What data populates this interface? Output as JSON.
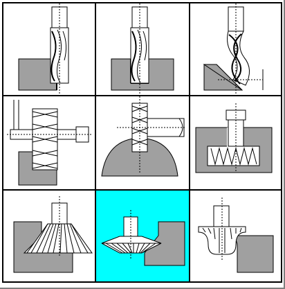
{
  "tool_palette": {
    "selected_index": 7,
    "selected_color": "#00ffff",
    "material_color": "#a0a0a0",
    "tools": [
      {
        "icon": "end-mill-side-cut-icon"
      },
      {
        "icon": "end-mill-corner-cut-icon"
      },
      {
        "icon": "helical-end-mill-chamfer-icon"
      },
      {
        "icon": "slab-mill-face-icon"
      },
      {
        "icon": "side-mill-radius-icon"
      },
      {
        "icon": "t-slot-cutter-icon"
      },
      {
        "icon": "dovetail-cutter-outer-icon"
      },
      {
        "icon": "dovetail-cutter-inner-icon"
      },
      {
        "icon": "corner-rounding-cutter-icon"
      }
    ]
  }
}
